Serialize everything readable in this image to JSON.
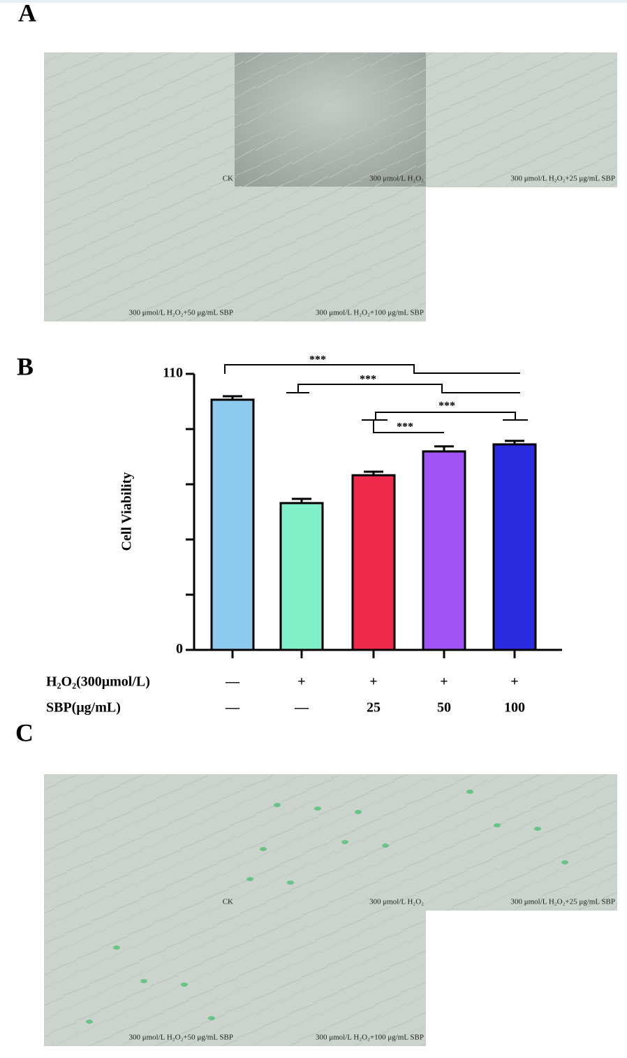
{
  "panel_a": {
    "label": "A",
    "captions": [
      "CK",
      "300 μmol/L H₂O₂",
      "300 μmol/L H₂O₂+25 μg/mL SBP",
      "300 μmol/L H₂O₂+50 μg/mL SBP",
      "300 μmol/L H₂O₂+100 μg/mL SBP"
    ]
  },
  "panel_b": {
    "label": "B"
  },
  "chart_data": {
    "type": "bar",
    "y_label": "Cell Viability",
    "values": [
      99.7,
      58.5,
      69.6,
      79.1,
      81.9
    ],
    "errors": [
      1.4,
      1.7,
      1.4,
      2.0,
      1.4
    ],
    "colors": [
      "#8ec9f0",
      "#80f0c8",
      "#ee2a4a",
      "#a052f2",
      "#2b2be0"
    ],
    "ylim": [
      0,
      110
    ],
    "yticks": [
      0,
      110
    ],
    "minor_yticks": [
      22,
      44,
      66,
      88
    ],
    "treatment_rows": [
      {
        "name": "H₂O₂(300μmol/L)",
        "values": [
          "—",
          "+",
          "+",
          "+",
          "+"
        ]
      },
      {
        "name": "SBP(μg/mL)",
        "values": [
          "—",
          "—",
          "25",
          "50",
          "100"
        ]
      }
    ],
    "significance_labels": [
      "***",
      "***",
      "***",
      "***"
    ]
  },
  "panel_c": {
    "label": "C",
    "captions": [
      "CK",
      "300 μmol/L H₂O₂",
      "300 μmol/L H₂O₂+25 μg/mL SBP",
      "300 μmol/L H₂O₂+50 μg/mL SBP",
      "300 μmol/L H₂O₂+100 μg/mL SBP"
    ]
  }
}
